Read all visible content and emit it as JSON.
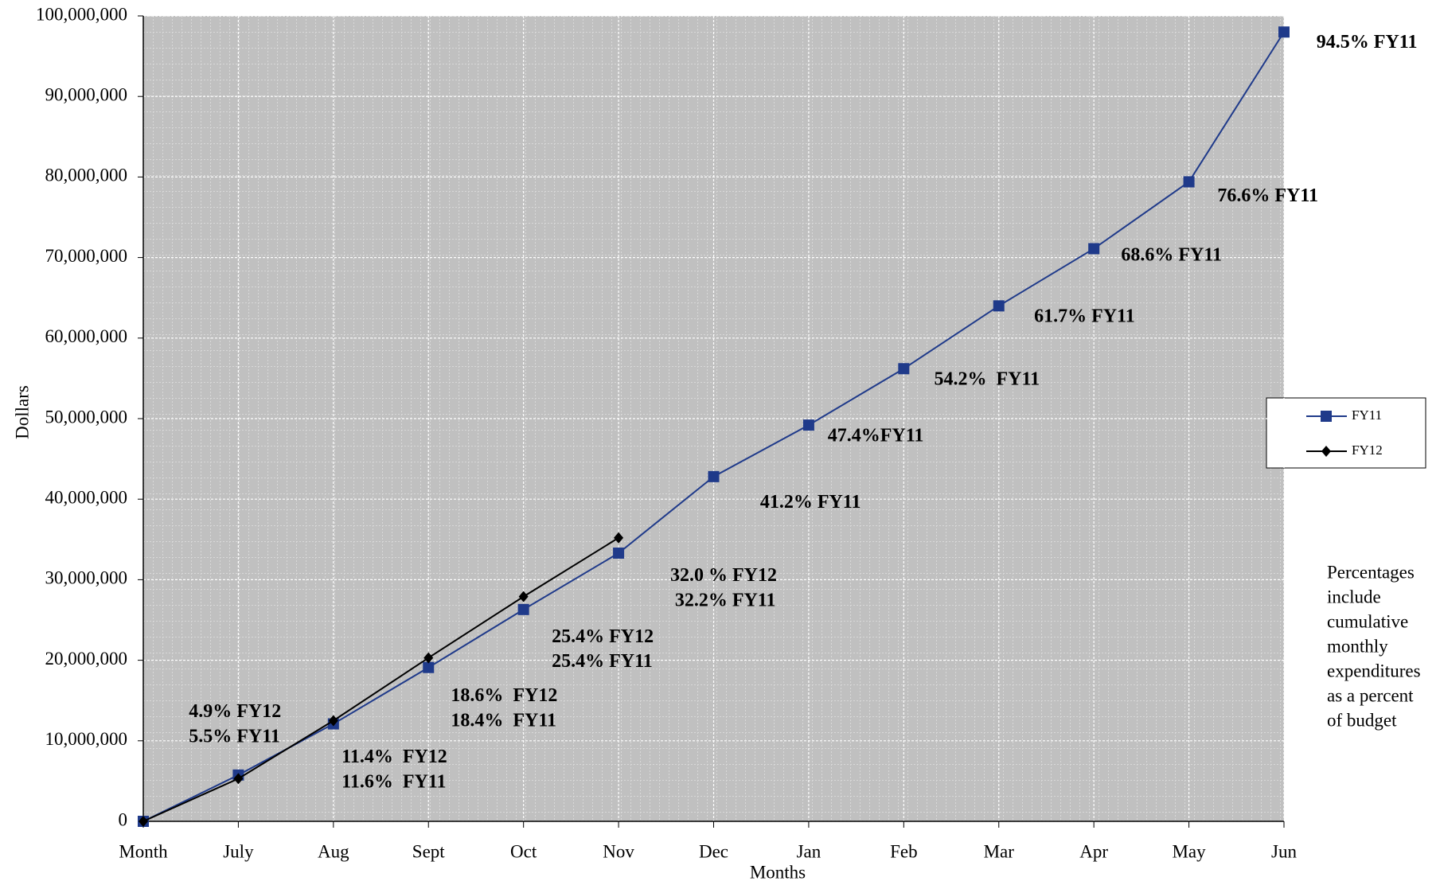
{
  "chart_data": {
    "type": "line",
    "categories": [
      "Month",
      "July",
      "Aug",
      "Sept",
      "Oct",
      "Nov",
      "Dec",
      "Jan",
      "Feb",
      "Mar",
      "Apr",
      "May",
      "Jun"
    ],
    "series": [
      {
        "name": "FY11",
        "color": "#1f3a8a",
        "marker": "square",
        "values": [
          0,
          5750000,
          12100000,
          19100000,
          26300000,
          33300000,
          42800000,
          49200000,
          56200000,
          64000000,
          71100000,
          79400000,
          98000000
        ]
      },
      {
        "name": "FY12",
        "color": "#000000",
        "marker": "diamond",
        "values": [
          0,
          5300000,
          12500000,
          20300000,
          27900000,
          35200000,
          null,
          null,
          null,
          null,
          null,
          null,
          null
        ]
      }
    ],
    "ylim": [
      0,
      100000000
    ],
    "yticks": [
      0,
      {
        "value": 10000000,
        "label": "10,000,000"
      },
      {
        "value": 20000000,
        "label": "20,000,000"
      },
      {
        "value": 30000000,
        "label": "30,000,000"
      },
      {
        "value": 40000000,
        "label": "40,000,000"
      },
      {
        "value": 50000000,
        "label": "50,000,000"
      },
      {
        "value": 60000000,
        "label": "60,000,000"
      },
      {
        "value": 70000000,
        "label": "70,000,000"
      },
      {
        "value": 80000000,
        "label": "80,000,000"
      },
      {
        "value": 90000000,
        "label": "90,000,000"
      },
      {
        "value": 100000000,
        "label": "100,000,000"
      }
    ],
    "grid": true,
    "xlabel": "Months",
    "ylabel": "Dollars",
    "legend": "right",
    "annotations": [
      {
        "text": "4.9% FY12",
        "color": "#000000"
      },
      {
        "text": "5.5% FY11",
        "color": "#2e5490"
      },
      {
        "text": "11.4%  FY12",
        "color": "#000000"
      },
      {
        "text": "11.6%  FY11",
        "color": "#2e5490"
      },
      {
        "text": "18.6%  FY12",
        "color": "#000000"
      },
      {
        "text": "18.4%  FY11",
        "color": "#2e5490"
      },
      {
        "text": "25.4% FY12",
        "color": "#000000"
      },
      {
        "text": "25.4% FY11",
        "color": "#2e5490"
      },
      {
        "text": "32.0 % FY12",
        "color": "#000000"
      },
      {
        "text": "32.2% FY11",
        "color": "#2e5490"
      },
      {
        "text": "41.2% FY11",
        "color": "#2e5490"
      },
      {
        "text": "47.4%FY11",
        "color": "#2e5490"
      },
      {
        "text": "54.2%  FY11",
        "color": "#2e5490"
      },
      {
        "text": "61.7% FY11",
        "color": "#2e5490"
      },
      {
        "text": "68.6% FY11",
        "color": "#2e5490"
      },
      {
        "text": "76.6% FY11",
        "color": "#2e5490"
      },
      {
        "text": "94.5% FY11",
        "color": "#2e5490"
      }
    ],
    "note": [
      "Percentages",
      "include",
      "cumulative",
      "monthly",
      "expenditures",
      "as a percent",
      "of budget"
    ]
  }
}
